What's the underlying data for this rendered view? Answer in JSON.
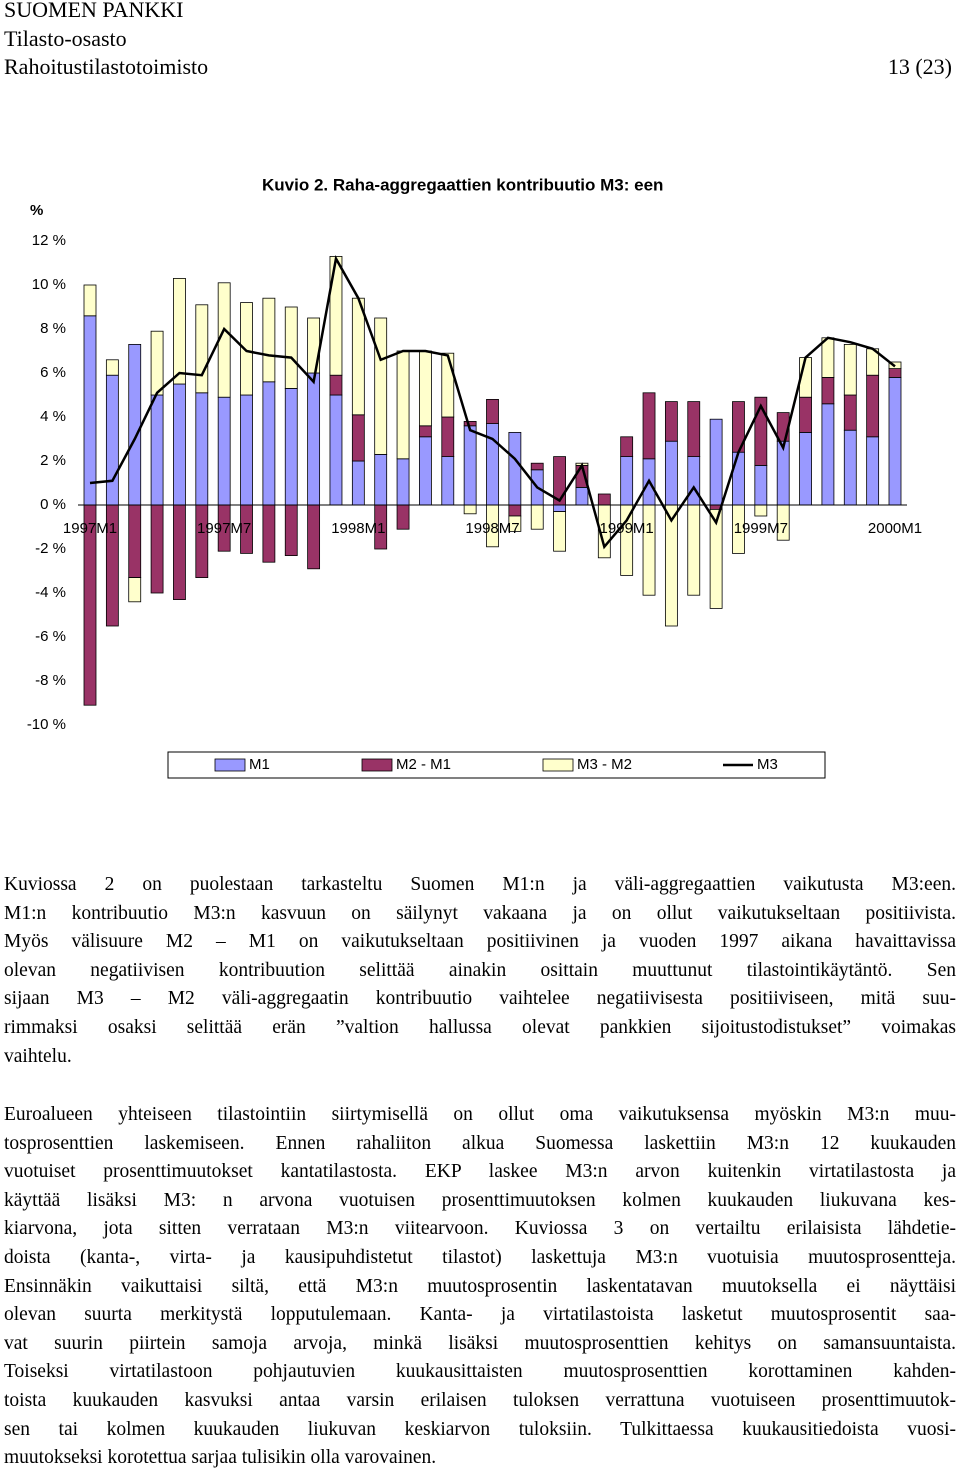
{
  "header": {
    "org": "SUOMEN PANKKI",
    "department": "Tilasto-osasto",
    "unit": "Rahoitustilastotoimisto",
    "page": "13 (23)"
  },
  "chart_data": {
    "type": "bar",
    "stacked": true,
    "title": "Kuvio 2. Raha-aggregaattien kontribuutio M3: een",
    "y_label": "%",
    "categories": [
      "1997M1",
      null,
      null,
      null,
      null,
      null,
      "1997M7",
      null,
      null,
      null,
      null,
      null,
      "1998M1",
      null,
      null,
      null,
      null,
      null,
      "1998M7",
      null,
      null,
      null,
      null,
      null,
      "1999M1",
      null,
      null,
      null,
      null,
      null,
      "1999M7",
      null,
      null,
      null,
      null,
      null,
      "2000M1"
    ],
    "ylim": [
      -10,
      12
    ],
    "yticks": [
      {
        "value": -10,
        "label": "-10 %"
      },
      {
        "value": -8,
        "label": "-8 %"
      },
      {
        "value": -6,
        "label": "-6 %"
      },
      {
        "value": -4,
        "label": "-4 %"
      },
      {
        "value": -2,
        "label": "-2 %"
      },
      {
        "value": 0,
        "label": "0 %"
      },
      {
        "value": 2,
        "label": "2 %"
      },
      {
        "value": 4,
        "label": "4 %"
      },
      {
        "value": 6,
        "label": "6 %"
      },
      {
        "value": 8,
        "label": "8 %"
      },
      {
        "value": 10,
        "label": "10 %"
      },
      {
        "value": 12,
        "label": "12 %"
      }
    ],
    "grid": false,
    "series": [
      {
        "name": "M1",
        "color": "#9999ff",
        "type": "bar",
        "values": [
          8.6,
          5.9,
          7.3,
          5.0,
          5.5,
          5.1,
          4.9,
          5.0,
          5.6,
          5.3,
          6.0,
          5.0,
          2.0,
          2.3,
          2.1,
          3.1,
          2.2,
          3.6,
          3.7,
          3.3,
          1.6,
          -0.3,
          0.8,
          0.0,
          2.2,
          2.1,
          2.9,
          2.2,
          3.9,
          2.4,
          1.8,
          2.9,
          3.3,
          4.6,
          3.4,
          3.1,
          5.8
        ]
      },
      {
        "name": "M2 - M1",
        "color": "#993366",
        "type": "bar",
        "values": [
          -9.1,
          -5.5,
          -3.3,
          -4.0,
          -4.3,
          -3.3,
          -2.1,
          -2.2,
          -2.6,
          -2.3,
          -2.9,
          0.9,
          2.1,
          -2.0,
          -1.1,
          0.5,
          1.8,
          0.2,
          1.1,
          -0.5,
          0.3,
          2.2,
          1.0,
          0.5,
          0.9,
          3.0,
          1.8,
          2.5,
          -0.2,
          2.3,
          3.1,
          1.3,
          1.6,
          1.2,
          1.6,
          2.8,
          0.4
        ]
      },
      {
        "name": "M3 - M2",
        "color": "#ffffcc",
        "type": "bar",
        "values": [
          1.4,
          0.7,
          -1.1,
          2.9,
          4.8,
          4.0,
          5.2,
          4.2,
          3.8,
          3.7,
          2.5,
          5.4,
          5.3,
          6.2,
          4.9,
          3.4,
          2.9,
          -0.4,
          -1.9,
          -0.7,
          -1.1,
          -1.8,
          0.1,
          -2.4,
          -3.2,
          -4.1,
          -5.5,
          -4.1,
          -4.5,
          -2.2,
          -0.5,
          -1.6,
          1.8,
          1.8,
          2.3,
          1.2,
          0.3
        ]
      },
      {
        "name": "M3",
        "color": "#000000",
        "type": "line",
        "values": [
          1.0,
          1.1,
          3.0,
          5.1,
          6.0,
          5.9,
          8.0,
          7.0,
          6.8,
          6.7,
          5.6,
          11.2,
          9.4,
          6.6,
          7.0,
          7.0,
          6.8,
          3.4,
          3.0,
          2.1,
          0.8,
          0.2,
          1.8,
          -1.9,
          -0.7,
          1.1,
          -0.7,
          0.8,
          -0.8,
          2.4,
          4.5,
          2.6,
          6.7,
          7.6,
          7.4,
          7.1,
          6.3
        ]
      }
    ]
  },
  "paragraphs": [
    [
      "Kuviossa 2 on puolestaan tarkasteltu Suomen M1:n ja väli-aggregaattien vaikutusta M3:een.",
      "M1:n kontribuutio M3:n kasvuun on säilynyt vakaana ja on ollut vaikutukseltaan positiivista.",
      "Myös välisuure M2 – M1 on vaikutukseltaan positiivinen ja vuoden 1997 aikana havaittavissa",
      "olevan negatiivisen kontribuution selittää ainakin osittain muuttunut tilastointikäytäntö. Sen",
      "sijaan M3 – M2 väli-aggregaatin kontribuutio vaihtelee negatiivisesta positiiviseen, mitä suu-",
      "rimmaksi osaksi selittää erän ”valtion hallussa olevat pankkien sijoitustodistukset” voimakas",
      "vaihtelu."
    ],
    [
      "Euroalueen yhteiseen tilastointiin siirtymisellä on ollut oma vaikutuksensa myöskin M3:n muu-",
      "tosprosenttien laskemiseen. Ennen rahaliiton alkua Suomessa laskettiin M3:n 12 kuukauden",
      "vuotuiset prosenttimuutokset kantatilastosta. EKP laskee M3:n arvon kuitenkin virtatilastosta ja",
      "käyttää lisäksi M3: n arvona vuotuisen prosenttimuutoksen kolmen kuukauden liukuvana kes-",
      "kiarvona, jota sitten verrataan M3:n viitearvoon. Kuviossa 3 on vertailtu erilaisista lähdetie-",
      "doista (kanta-, virta- ja kausipuhdistetut tilastot) laskettuja M3:n vuotuisia muutosprosentteja.",
      "Ensinnäkin vaikuttaisi siltä, että M3:n muutosprosentin laskentatavan muutoksella ei näyttäisi",
      "olevan suurta merkitystä lopputulemaan. Kanta- ja virtatilastoista lasketut muutosprosentit saa-",
      "vat suurin piirtein samoja arvoja, minkä lisäksi muutosprosenttien kehitys on samansuuntaista.",
      "Toiseksi virtatilastoon pohjautuvien kuukausittaisten muutosprosenttien korottaminen kahden-",
      "toista kuukauden kasvuksi antaa varsin erilaisen tuloksen verrattuna vuotuiseen prosenttimuutok-",
      "sen tai kolmen kuukauden liukuvan keskiarvon tuloksiin. Tulkittaessa kuukausitiedoista vuosi-",
      "muutokseksi korotettua sarjaa tulisikin olla varovainen."
    ]
  ]
}
